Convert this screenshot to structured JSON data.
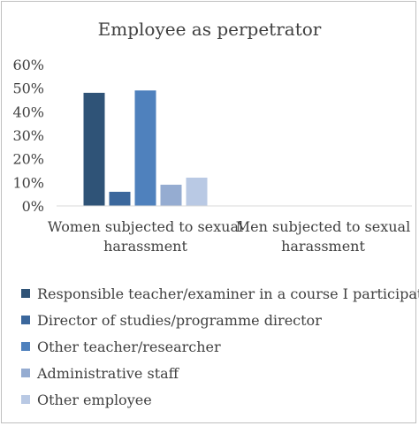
{
  "chart_data": {
    "type": "bar",
    "title": "Employee as perpetrator",
    "categories": [
      [
        "Women subjected to sexual",
        "harassment"
      ],
      [
        "Men subjected to sexual",
        "harassment"
      ]
    ],
    "ylim": [
      0,
      60
    ],
    "yticks": [
      "0%",
      "10%",
      "20%",
      "30%",
      "40%",
      "50%",
      "60%"
    ],
    "ytick_values": [
      0,
      10,
      20,
      30,
      40,
      50,
      60
    ],
    "grid": false,
    "legend_position": "bottom",
    "series": [
      {
        "name": "Responsible teacher/examiner in a course I participated in",
        "color": "#2f5377",
        "values": [
          48,
          null
        ]
      },
      {
        "name": "Director of studies/programme director",
        "color": "#3b679c",
        "values": [
          6,
          null
        ]
      },
      {
        "name": "Other teacher/researcher",
        "color": "#4f81bd",
        "values": [
          49,
          null
        ]
      },
      {
        "name": "Administrative staff",
        "color": "#95acd1",
        "values": [
          9,
          null
        ]
      },
      {
        "name": "Other employee",
        "color": "#b9c9e4",
        "values": [
          12,
          null
        ]
      }
    ]
  }
}
